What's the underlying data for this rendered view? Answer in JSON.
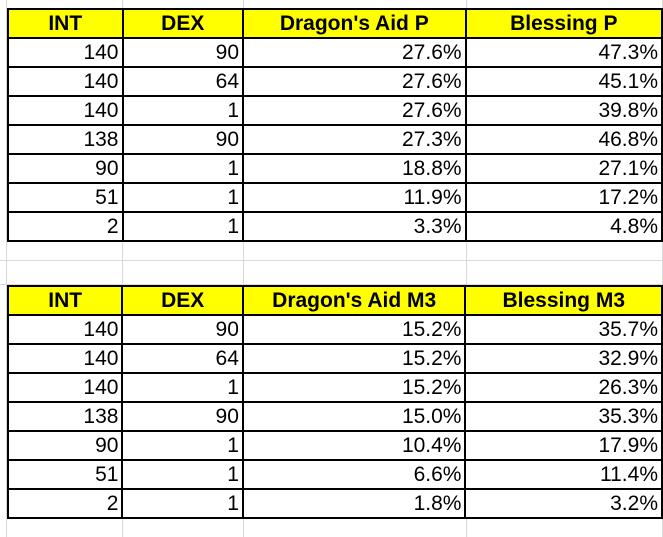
{
  "colors": {
    "header_fill": "#ffff00",
    "border": "#000000",
    "gridline": "#d9d9d9"
  },
  "tables": [
    {
      "headers": [
        "INT",
        "DEX",
        "Dragon's Aid P",
        "Blessing P"
      ],
      "rows": [
        [
          "140",
          "90",
          "27.6%",
          "47.3%"
        ],
        [
          "140",
          "64",
          "27.6%",
          "45.1%"
        ],
        [
          "140",
          "1",
          "27.6%",
          "39.8%"
        ],
        [
          "138",
          "90",
          "27.3%",
          "46.8%"
        ],
        [
          "90",
          "1",
          "18.8%",
          "27.1%"
        ],
        [
          "51",
          "1",
          "11.9%",
          "17.2%"
        ],
        [
          "2",
          "1",
          "3.3%",
          "4.8%"
        ]
      ]
    },
    {
      "headers": [
        "INT",
        "DEX",
        "Dragon's Aid M3",
        "Blessing M3"
      ],
      "rows": [
        [
          "140",
          "90",
          "15.2%",
          "35.7%"
        ],
        [
          "140",
          "64",
          "15.2%",
          "32.9%"
        ],
        [
          "140",
          "1",
          "15.2%",
          "26.3%"
        ],
        [
          "138",
          "90",
          "15.0%",
          "35.3%"
        ],
        [
          "90",
          "1",
          "10.4%",
          "17.9%"
        ],
        [
          "51",
          "1",
          "6.6%",
          "11.4%"
        ],
        [
          "2",
          "1",
          "1.8%",
          "3.2%"
        ]
      ]
    }
  ]
}
